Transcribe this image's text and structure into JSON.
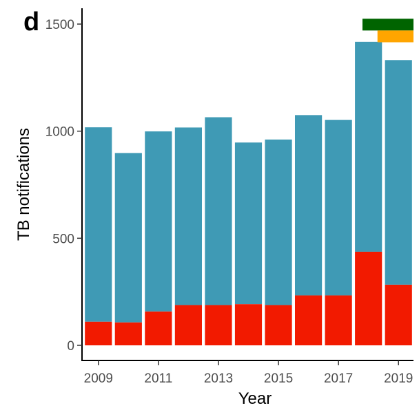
{
  "panel_label": "d",
  "colors": {
    "total": "#3F9AB5",
    "subset": "#F21A00",
    "marker_top": "#006400",
    "marker_bottom": "#FFA500",
    "axis": "#000000"
  },
  "chart_data": {
    "type": "bar",
    "stacked": true,
    "xlabel": "Year",
    "ylabel": "TB notifications",
    "ylim": [
      0,
      1500
    ],
    "xlim": [
      2008.5,
      2019.5
    ],
    "y_ticks": [
      0,
      500,
      1000,
      1500
    ],
    "x_ticks": [
      2009,
      2011,
      2013,
      2015,
      2017,
      2019
    ],
    "categories": [
      2009,
      2010,
      2011,
      2012,
      2013,
      2014,
      2015,
      2016,
      2017,
      2018,
      2019
    ],
    "series": [
      {
        "values": [
          110,
          107,
          158,
          188,
          188,
          192,
          188,
          233,
          233,
          437,
          283
        ]
      },
      {
        "values": [
          908,
          791,
          841,
          829,
          877,
          755,
          773,
          842,
          820,
          980,
          1049
        ]
      }
    ],
    "totals": [
      1018,
      898,
      999,
      1017,
      1065,
      947,
      961,
      1075,
      1053,
      1417,
      1332
    ],
    "markers": [
      {
        "color_key": "marker_top",
        "x_start": 2017.8,
        "x_end": 2019.5,
        "y_start": 1470,
        "y_end": 1525
      },
      {
        "color_key": "marker_bottom",
        "x_start": 2018.3,
        "x_end": 2019.5,
        "y_start": 1415,
        "y_end": 1470
      }
    ],
    "grid": false,
    "legend": "none"
  }
}
